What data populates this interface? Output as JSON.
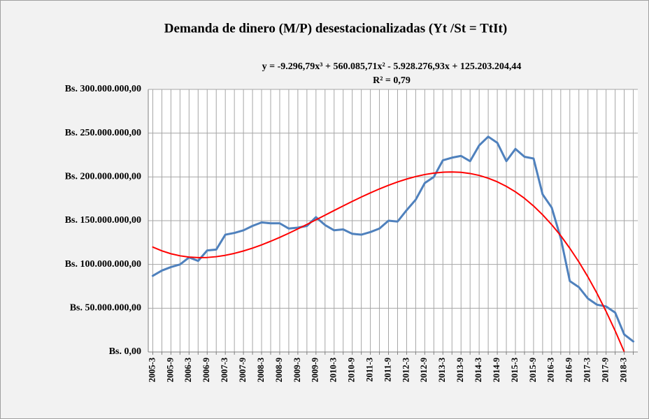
{
  "chart_data": {
    "type": "line",
    "title": "Demanda de dinero (M/P) desestacionalizadas  (Yt /St = TtIt)",
    "annotations": [
      "y = -9.296,79x³ + 560.085,71x² - 5.928.276,93x + 125.203.204,44",
      "R² = 0,79"
    ],
    "categories": [
      "2005-3",
      null,
      "2005-9",
      null,
      "2006-3",
      null,
      "2006-9",
      null,
      "2007-3",
      null,
      "2007-9",
      null,
      "2008-3",
      null,
      "2008-9",
      null,
      "2009-3",
      null,
      "2009-9",
      null,
      "2010-3",
      null,
      "2010-9",
      null,
      "2011-3",
      null,
      "2011-9",
      null,
      "2012-3",
      null,
      "2012-9",
      null,
      "2013-3",
      null,
      "2013-9",
      null,
      "2014-3",
      null,
      "2014-9",
      null,
      "2015-3",
      null,
      "2015-9",
      null,
      "2016-3",
      null,
      "2016-9",
      null,
      "2017-3",
      null,
      "2017-9",
      null,
      "2018-3",
      null
    ],
    "series": [
      {
        "color": "#4f81bd",
        "width": 3,
        "values": [
          87000000,
          93000000,
          97000000,
          100000000,
          108000000,
          104000000,
          116000000,
          117000000,
          134000000,
          136000000,
          139000000,
          144000000,
          148000000,
          147000000,
          147000000,
          141000000,
          142000000,
          144000000,
          154000000,
          145000000,
          139000000,
          140000000,
          135000000,
          134000000,
          137000000,
          141000000,
          150000000,
          149000000,
          162000000,
          174000000,
          193000000,
          200000000,
          219000000,
          222000000,
          224000000,
          218000000,
          236000000,
          246000000,
          239000000,
          218000000,
          232000000,
          223000000,
          221000000,
          180000000,
          165000000,
          130000000,
          81000000,
          74000000,
          61000000,
          54000000,
          52000000,
          45000000,
          20000000,
          12000000
        ]
      },
      {
        "color": "#ff0000",
        "width": 2,
        "values": [
          119830000,
          115510000,
          112210000,
          109860000,
          108400000,
          107790000,
          107960000,
          108860000,
          110440000,
          112630000,
          115390000,
          118650000,
          122360000,
          126470000,
          130920000,
          135650000,
          140610000,
          145740000,
          150990000,
          156300000,
          161610000,
          166870000,
          172020000,
          177010000,
          181790000,
          186290000,
          190450000,
          194240000,
          197570000,
          200420000,
          202700000,
          204390000,
          205400000,
          205700000,
          205220000,
          203900000,
          201700000,
          198550000,
          194390000,
          189210000,
          182960000,
          175560000,
          166800000,
          156750000,
          145420000,
          132850000,
          118490000,
          102880000,
          85730000,
          66900000,
          46370000,
          24220000,
          220000,
          null
        ]
      }
    ],
    "ylim": [
      0,
      300000000
    ],
    "yticks": [
      {
        "value": 0,
        "label": "Bs. 0,00"
      },
      {
        "value": 50000000,
        "label": "Bs. 50.000.000,00"
      },
      {
        "value": 100000000,
        "label": "Bs. 100.000.000,00"
      },
      {
        "value": 150000000,
        "label": "Bs. 150.000.000,00"
      },
      {
        "value": 200000000,
        "label": "Bs. 200.000.000,00"
      },
      {
        "value": 250000000,
        "label": "Bs. 250.000.000,00"
      },
      {
        "value": 300000000,
        "label": "Bs. 300.000.000,00"
      }
    ],
    "grid": true
  }
}
